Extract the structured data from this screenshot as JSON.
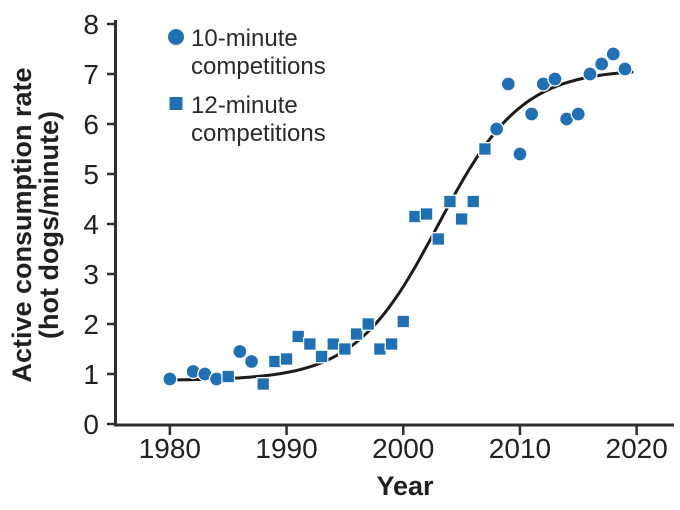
{
  "figure": {
    "background": "#ffffff"
  },
  "legend": {
    "position": "top-left",
    "items": [
      {
        "marker": "circle",
        "label_line1": "10-minute",
        "label_line2": "competitions"
      },
      {
        "marker": "square",
        "label_line1": "12-minute",
        "label_line2": "competitions"
      }
    ]
  },
  "chart_data": {
    "type": "scatter",
    "title": "",
    "xlabel": "Year",
    "ylabel_line1": "Active consumption rate",
    "ylabel_line2": "(hot dogs/minute)",
    "xlim": [
      1975.3,
      2023.2
    ],
    "ylim": [
      0,
      8
    ],
    "x_ticks": [
      1980,
      1990,
      2000,
      2010,
      2020
    ],
    "y_ticks": [
      0,
      1,
      2,
      3,
      4,
      5,
      6,
      7,
      8
    ],
    "grid": false,
    "legend_position": "top-left",
    "colors": {
      "marker": "#1f70b4",
      "marker_outline": "#ffffff",
      "curve": "#1c1c1c",
      "axis": "#2e2e2e",
      "text": "#231f20"
    },
    "series": [
      {
        "name": "10-minute competitions",
        "marker": "circle",
        "points": [
          [
            1980,
            0.9
          ],
          [
            1982,
            1.05
          ],
          [
            1983,
            1.0
          ],
          [
            1984,
            0.9
          ],
          [
            1986,
            1.45
          ],
          [
            1987,
            1.25
          ],
          [
            2008,
            5.9
          ],
          [
            2009,
            6.8
          ],
          [
            2010,
            5.4
          ],
          [
            2011,
            6.2
          ],
          [
            2012,
            6.8
          ],
          [
            2013,
            6.9
          ],
          [
            2014,
            6.1
          ],
          [
            2015,
            6.2
          ],
          [
            2016,
            7.0
          ],
          [
            2017,
            7.2
          ],
          [
            2018,
            7.4
          ],
          [
            2019,
            7.1
          ]
        ]
      },
      {
        "name": "12-minute competitions",
        "marker": "square",
        "points": [
          [
            1985,
            0.95
          ],
          [
            1988,
            0.8
          ],
          [
            1989,
            1.25
          ],
          [
            1990,
            1.3
          ],
          [
            1991,
            1.75
          ],
          [
            1992,
            1.6
          ],
          [
            1993,
            1.35
          ],
          [
            1994,
            1.6
          ],
          [
            1995,
            1.5
          ],
          [
            1996,
            1.8
          ],
          [
            1997,
            2.0
          ],
          [
            1998,
            1.5
          ],
          [
            1999,
            1.6
          ],
          [
            2000,
            2.05
          ],
          [
            2001,
            4.15
          ],
          [
            2002,
            4.2
          ],
          [
            2003,
            3.7
          ],
          [
            2004,
            4.45
          ],
          [
            2005,
            4.1
          ],
          [
            2006,
            4.45
          ],
          [
            2007,
            5.5
          ]
        ]
      }
    ],
    "trend_curve": {
      "type": "logistic",
      "base": 0.87,
      "range": 6.23,
      "midpoint": 2003.0,
      "steepness": 0.28,
      "domain": [
        1979.6,
        2019.6
      ]
    }
  }
}
